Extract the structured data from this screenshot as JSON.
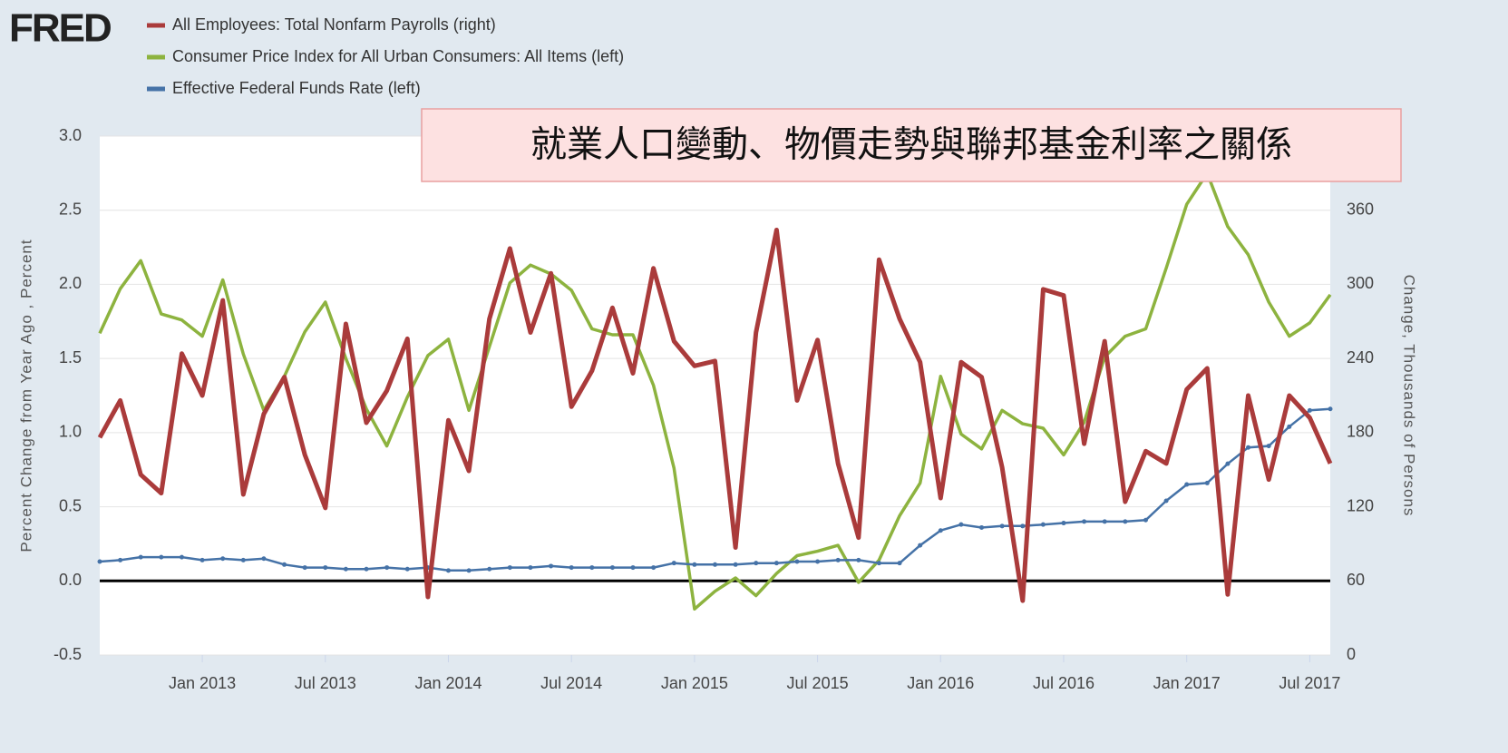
{
  "logo": "FRED",
  "annotation": "就業人口變動、物價走勢與聯邦基金利率之關係",
  "chart_data": {
    "type": "line",
    "ylabel": "Percent Change from Year Ago , Percent",
    "y2label": "Change, Thousands of Persons",
    "x": [
      "2012-08",
      "2012-09",
      "2012-10",
      "2012-11",
      "2012-12",
      "2013-01",
      "2013-02",
      "2013-03",
      "2013-04",
      "2013-05",
      "2013-06",
      "2013-07",
      "2013-08",
      "2013-09",
      "2013-10",
      "2013-11",
      "2013-12",
      "2014-01",
      "2014-02",
      "2014-03",
      "2014-04",
      "2014-05",
      "2014-06",
      "2014-07",
      "2014-08",
      "2014-09",
      "2014-10",
      "2014-11",
      "2014-12",
      "2015-01",
      "2015-02",
      "2015-03",
      "2015-04",
      "2015-05",
      "2015-06",
      "2015-07",
      "2015-08",
      "2015-09",
      "2015-10",
      "2015-11",
      "2015-12",
      "2016-01",
      "2016-02",
      "2016-03",
      "2016-04",
      "2016-05",
      "2016-06",
      "2016-07",
      "2016-08",
      "2016-09",
      "2016-10",
      "2016-11",
      "2016-12",
      "2017-01",
      "2017-02",
      "2017-03",
      "2017-04",
      "2017-05",
      "2017-06",
      "2017-07",
      "2017-08"
    ],
    "xticks": [
      {
        "value": "2013-01",
        "label": "Jan 2013"
      },
      {
        "value": "2013-07",
        "label": "Jul 2013"
      },
      {
        "value": "2014-01",
        "label": "Jan 2014"
      },
      {
        "value": "2014-07",
        "label": "Jul 2014"
      },
      {
        "value": "2015-01",
        "label": "Jan 2015"
      },
      {
        "value": "2015-07",
        "label": "Jul 2015"
      },
      {
        "value": "2016-01",
        "label": "Jan 2016"
      },
      {
        "value": "2016-07",
        "label": "Jul 2016"
      },
      {
        "value": "2017-01",
        "label": "Jan 2017"
      },
      {
        "value": "2017-07",
        "label": "Jul 2017"
      }
    ],
    "ylim": [
      -0.5,
      3.0
    ],
    "yticks": [
      -0.5,
      {
        "value": 0,
        "label": "0.0"
      },
      0.5,
      {
        "value": 1,
        "label": "1.0"
      },
      1.5,
      {
        "value": 2,
        "label": "2.0"
      },
      2.5,
      {
        "value": 3,
        "label": "3.0"
      }
    ],
    "y2lim": [
      0,
      420
    ],
    "y2ticks": [
      0,
      60,
      120,
      180,
      240,
      300,
      360
    ],
    "grid": true,
    "series": [
      {
        "name": "All Employees: Total Nonfarm Payrolls (right)",
        "color": "#aa3b3b",
        "axis": "y2",
        "values": [
          176,
          206,
          146,
          131,
          244,
          210,
          287,
          130,
          195,
          225,
          162,
          119,
          268,
          188,
          214,
          256,
          47,
          190,
          149,
          272,
          329,
          261,
          309,
          201,
          230,
          281,
          228,
          313,
          254,
          234,
          238,
          87,
          261,
          344,
          206,
          255,
          155,
          95,
          320,
          272,
          237,
          127,
          237,
          225,
          152,
          44,
          296,
          291,
          171,
          254,
          124,
          165,
          155,
          215,
          232,
          49,
          210,
          142,
          210,
          192,
          155
        ]
      },
      {
        "name": "Consumer Price Index for All Urban Consumers: All Items (left)",
        "color": "#8db33f",
        "values": [
          1.67,
          1.97,
          2.16,
          1.8,
          1.76,
          1.65,
          2.03,
          1.53,
          1.15,
          1.38,
          1.68,
          1.88,
          1.5,
          1.16,
          0.91,
          1.24,
          1.52,
          1.63,
          1.15,
          1.58,
          2.01,
          2.13,
          2.07,
          1.96,
          1.7,
          1.66,
          1.66,
          1.32,
          0.76,
          -0.19,
          -0.07,
          0.02,
          -0.1,
          0.05,
          0.17,
          0.2,
          0.24,
          -0.01,
          0.14,
          0.44,
          0.66,
          1.38,
          0.99,
          0.89,
          1.15,
          1.06,
          1.03,
          0.85,
          1.07,
          1.51,
          1.65,
          1.7,
          2.11,
          2.54,
          2.75,
          2.39,
          2.2,
          1.88,
          1.65,
          1.74,
          1.93
        ]
      },
      {
        "name": "Effective Federal Funds Rate (left)",
        "color": "#4572a7",
        "values": [
          0.13,
          0.14,
          0.16,
          0.16,
          0.16,
          0.14,
          0.15,
          0.14,
          0.15,
          0.11,
          0.09,
          0.09,
          0.08,
          0.08,
          0.09,
          0.08,
          0.09,
          0.07,
          0.07,
          0.08,
          0.09,
          0.09,
          0.1,
          0.09,
          0.09,
          0.09,
          0.09,
          0.09,
          0.12,
          0.11,
          0.11,
          0.11,
          0.12,
          0.12,
          0.13,
          0.13,
          0.14,
          0.14,
          0.12,
          0.12,
          0.24,
          0.34,
          0.38,
          0.36,
          0.37,
          0.37,
          0.38,
          0.39,
          0.4,
          0.4,
          0.4,
          0.41,
          0.54,
          0.65,
          0.66,
          0.79,
          0.9,
          0.91,
          1.04,
          1.15,
          1.16
        ]
      }
    ]
  }
}
